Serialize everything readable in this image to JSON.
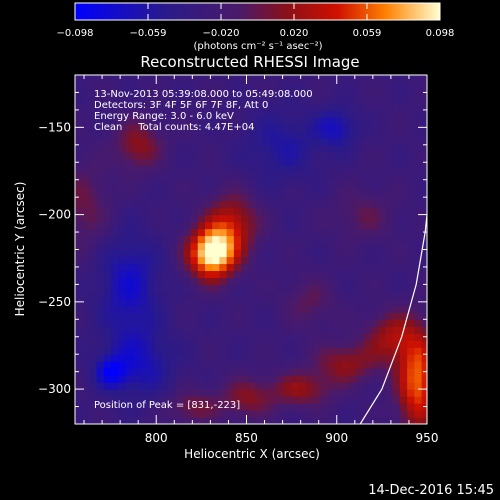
{
  "chart_data": {
    "type": "heatmap",
    "title": "Reconstructed RHESSI Image",
    "xlabel": "Heliocentric X (arcsec)",
    "ylabel": "Heliocentric Y (arcsec)",
    "xlim": [
      755,
      950
    ],
    "ylim": [
      -320,
      -120
    ],
    "x_ticks": [
      800,
      850,
      900,
      950
    ],
    "y_ticks": [
      -150,
      -200,
      -250,
      -300
    ],
    "colorbar": {
      "min": -0.098,
      "max": 0.098,
      "ticks": [
        "-0.098",
        "-0.059",
        "-0.020",
        "0.020",
        "0.059",
        "0.098"
      ],
      "unit_label": "(photons cm⁻² s⁻¹ asec⁻²)"
    },
    "annotations": [
      "13-Nov-2013 05:39:08.000 to 05:49:08.000",
      "Detectors: 3F 4F 5F 6F 7F 8F, Att 0",
      "Energy Range: 3.0 - 6.0 keV",
      "Clean     Total counts: 4.47E+04"
    ],
    "peak_label": "Position of Peak = [831,-223]",
    "peak": {
      "x": 831,
      "y": -223,
      "value": 0.098
    },
    "sources": [
      {
        "x": 831,
        "y": -222,
        "amp": 0.135,
        "sx": 9,
        "sy": 10
      },
      {
        "x": 842,
        "y": -205,
        "amp": 0.06,
        "sx": 10,
        "sy": 12
      },
      {
        "x": 790,
        "y": -160,
        "amp": 0.045,
        "sx": 9,
        "sy": 10
      },
      {
        "x": 760,
        "y": -195,
        "amp": 0.03,
        "sx": 10,
        "sy": 18
      },
      {
        "x": 945,
        "y": -295,
        "amp": 0.09,
        "sx": 8,
        "sy": 20
      },
      {
        "x": 930,
        "y": -270,
        "amp": 0.05,
        "sx": 10,
        "sy": 10
      },
      {
        "x": 905,
        "y": -285,
        "amp": 0.045,
        "sx": 12,
        "sy": 8
      },
      {
        "x": 880,
        "y": -300,
        "amp": 0.045,
        "sx": 12,
        "sy": 7
      },
      {
        "x": 850,
        "y": -305,
        "amp": 0.04,
        "sx": 10,
        "sy": 8
      },
      {
        "x": 820,
        "y": -310,
        "amp": 0.035,
        "sx": 10,
        "sy": 7
      },
      {
        "x": 885,
        "y": -250,
        "amp": 0.025,
        "sx": 10,
        "sy": 10
      },
      {
        "x": 915,
        "y": -200,
        "amp": 0.025,
        "sx": 12,
        "sy": 10
      },
      {
        "x": 870,
        "y": -160,
        "amp": -0.03,
        "sx": 15,
        "sy": 15
      },
      {
        "x": 785,
        "y": -240,
        "amp": -0.045,
        "sx": 12,
        "sy": 20
      },
      {
        "x": 790,
        "y": -285,
        "amp": -0.04,
        "sx": 14,
        "sy": 14
      },
      {
        "x": 900,
        "y": -150,
        "amp": -0.04,
        "sx": 8,
        "sy": 8
      },
      {
        "x": 775,
        "y": -290,
        "amp": -0.05,
        "sx": 6,
        "sy": 6
      }
    ],
    "limb_curve": [
      {
        "x": 913,
        "y": -320
      },
      {
        "x": 925,
        "y": -300
      },
      {
        "x": 936,
        "y": -270
      },
      {
        "x": 944,
        "y": -240
      },
      {
        "x": 949,
        "y": -210
      },
      {
        "x": 950,
        "y": -200
      }
    ],
    "grid": false
  },
  "footer": {
    "timestamp": "14-Dec-2016 15:45"
  }
}
